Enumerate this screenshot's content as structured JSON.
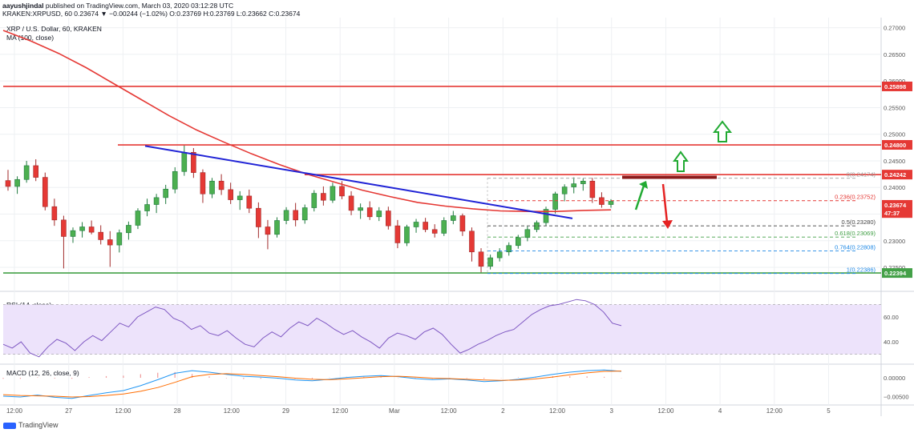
{
  "header": {
    "publisher": "aayushjindal",
    "published_line": "published on TradingView.com, March 03, 2020 03:12:28 UTC",
    "ohlc_line": "KRAKEN:XRPUSD, 60  0.23674  ▼ −0.00244 (−1.02%)  O:0.23769  H:0.23769  L:0.23662  C:0.23674"
  },
  "chart_data": [
    {
      "type": "line",
      "title": "XRP / U.S. Dollar, 60, KRAKEN",
      "indicator": "MA (100, close)",
      "x_tick_labels": [
        "12:00",
        "27",
        "12:00",
        "28",
        "12:00",
        "29",
        "12:00",
        "Mar",
        "12:00",
        "2",
        "12:00",
        "3",
        "12:00",
        "4",
        "12:00",
        "5"
      ],
      "y_tick_labels": [
        "0.27000",
        "0.26500",
        "0.26000",
        "0.25500",
        "0.25000",
        "0.24500",
        "0.24000",
        "0.23500",
        "0.23000",
        "0.22500"
      ],
      "ylim": [
        0.2214,
        0.2716
      ],
      "price_markers": [
        {
          "label": "0.25898",
          "value": 0.25898,
          "color": "#e53935"
        },
        {
          "label": "0.24800",
          "value": 0.248,
          "color": "#e53935"
        },
        {
          "label": "0.24242",
          "value": 0.24242,
          "color": "#e53935"
        },
        {
          "label": "0.23674",
          "value": 0.23674,
          "color": "#e53935"
        },
        {
          "label": "47:37",
          "value": 0.2352,
          "color": "#e53935"
        },
        {
          "label": "0.22394",
          "value": 0.22394,
          "color": "#43a047"
        }
      ],
      "fibonacci": [
        {
          "label": "0(0.24174)",
          "value": 0.24174,
          "color": "#9e9e9e"
        },
        {
          "label": "0.236(0.23752)",
          "value": 0.23752,
          "color": "#e53935"
        },
        {
          "label": "0.5(0.23280)",
          "value": 0.2328,
          "color": "#424242"
        },
        {
          "label": "0.618(0.23069)",
          "value": 0.23069,
          "color": "#43a047"
        },
        {
          "label": "0.764(0.22808)",
          "value": 0.22808,
          "color": "#1e88e5"
        },
        {
          "label": "1(0.22386)",
          "value": 0.22386,
          "color": "#1e88e5"
        }
      ],
      "ma_values": [
        0.2695,
        0.2675,
        0.2652,
        0.2625,
        0.2595,
        0.2565,
        0.2535,
        0.2508,
        0.2485,
        0.2463,
        0.2443,
        0.2425,
        0.241,
        0.2395,
        0.2383,
        0.2372,
        0.2365,
        0.236,
        0.2356,
        0.2355,
        0.2355,
        0.2357,
        0.2358
      ],
      "trend_line": {
        "color": "#2124d6",
        "from": 0.2478,
        "to": 0.2342
      },
      "candles": [
        [
          0.2413,
          0.2433,
          0.2394,
          0.2402
        ],
        [
          0.2402,
          0.2421,
          0.2388,
          0.2415
        ],
        [
          0.2415,
          0.245,
          0.2409,
          0.2441
        ],
        [
          0.2441,
          0.2453,
          0.2412,
          0.2419
        ],
        [
          0.2419,
          0.2428,
          0.2357,
          0.2364
        ],
        [
          0.2364,
          0.2379,
          0.2328,
          0.2339
        ],
        [
          0.2339,
          0.2347,
          0.2248,
          0.2308
        ],
        [
          0.2308,
          0.2325,
          0.2296,
          0.2319
        ],
        [
          0.2319,
          0.2335,
          0.2306,
          0.2326
        ],
        [
          0.2326,
          0.2338,
          0.2312,
          0.2316
        ],
        [
          0.2316,
          0.2329,
          0.2293,
          0.2302
        ],
        [
          0.2302,
          0.2318,
          0.2251,
          0.2292
        ],
        [
          0.2292,
          0.2321,
          0.2278,
          0.2315
        ],
        [
          0.2315,
          0.2336,
          0.2302,
          0.2329
        ],
        [
          0.2329,
          0.2361,
          0.2322,
          0.2356
        ],
        [
          0.2356,
          0.2379,
          0.2346,
          0.2368
        ],
        [
          0.2368,
          0.2388,
          0.2352,
          0.2381
        ],
        [
          0.2381,
          0.2405,
          0.2369,
          0.2397
        ],
        [
          0.2397,
          0.2438,
          0.2389,
          0.243
        ],
        [
          0.243,
          0.2479,
          0.2422,
          0.2466
        ],
        [
          0.2466,
          0.2474,
          0.2418,
          0.2428
        ],
        [
          0.2428,
          0.2434,
          0.2371,
          0.2388
        ],
        [
          0.2388,
          0.2418,
          0.238,
          0.2412
        ],
        [
          0.2412,
          0.2425,
          0.2386,
          0.2396
        ],
        [
          0.2396,
          0.2409,
          0.2369,
          0.2377
        ],
        [
          0.2377,
          0.2393,
          0.2358,
          0.2384
        ],
        [
          0.2384,
          0.2396,
          0.2352,
          0.2361
        ],
        [
          0.2361,
          0.2372,
          0.2305,
          0.2326
        ],
        [
          0.2326,
          0.2339,
          0.2284,
          0.2312
        ],
        [
          0.2312,
          0.2344,
          0.2306,
          0.2338
        ],
        [
          0.2338,
          0.2363,
          0.2331,
          0.2357
        ],
        [
          0.2357,
          0.2371,
          0.2327,
          0.2339
        ],
        [
          0.2339,
          0.2368,
          0.2332,
          0.2362
        ],
        [
          0.2362,
          0.2395,
          0.2355,
          0.2389
        ],
        [
          0.2389,
          0.2402,
          0.2366,
          0.2376
        ],
        [
          0.2376,
          0.2409,
          0.2371,
          0.2402
        ],
        [
          0.2402,
          0.2412,
          0.2378,
          0.2384
        ],
        [
          0.2384,
          0.2393,
          0.2348,
          0.2357
        ],
        [
          0.2357,
          0.237,
          0.2341,
          0.2362
        ],
        [
          0.2362,
          0.2374,
          0.2339,
          0.2345
        ],
        [
          0.2345,
          0.2363,
          0.2337,
          0.2356
        ],
        [
          0.2356,
          0.2364,
          0.2321,
          0.2328
        ],
        [
          0.2328,
          0.2339,
          0.2286,
          0.2296
        ],
        [
          0.2296,
          0.233,
          0.229,
          0.2326
        ],
        [
          0.2326,
          0.2341,
          0.2315,
          0.2335
        ],
        [
          0.2335,
          0.2343,
          0.2316,
          0.2321
        ],
        [
          0.2321,
          0.2331,
          0.2306,
          0.2314
        ],
        [
          0.2314,
          0.2344,
          0.2309,
          0.2338
        ],
        [
          0.2338,
          0.2356,
          0.2331,
          0.2347
        ],
        [
          0.2347,
          0.2351,
          0.2309,
          0.2318
        ],
        [
          0.2318,
          0.2325,
          0.2261,
          0.2279
        ],
        [
          0.2279,
          0.2286,
          0.2239,
          0.2252
        ],
        [
          0.2252,
          0.2274,
          0.2246,
          0.2268
        ],
        [
          0.2268,
          0.2286,
          0.2261,
          0.2279
        ],
        [
          0.2279,
          0.2297,
          0.2272,
          0.2291
        ],
        [
          0.2291,
          0.2311,
          0.2285,
          0.2306
        ],
        [
          0.2306,
          0.2327,
          0.2299,
          0.2321
        ],
        [
          0.2321,
          0.2338,
          0.2316,
          0.2334
        ],
        [
          0.2334,
          0.2364,
          0.2328,
          0.2359
        ],
        [
          0.2359,
          0.2392,
          0.2351,
          0.2388
        ],
        [
          0.2388,
          0.2406,
          0.2374,
          0.2401
        ],
        [
          0.2401,
          0.2419,
          0.2389,
          0.2407
        ],
        [
          0.2407,
          0.2417,
          0.2394,
          0.2412
        ],
        [
          0.2412,
          0.2418,
          0.2371,
          0.2381
        ],
        [
          0.2381,
          0.2391,
          0.2362,
          0.2368
        ],
        [
          0.2368,
          0.2378,
          0.2362,
          0.2374
        ]
      ]
    },
    {
      "type": "line",
      "title": "RSI (14, close)",
      "y_tick_labels": [
        "60.00",
        "40.00"
      ],
      "ylim": [
        24,
        78
      ],
      "band": [
        30,
        70
      ],
      "series": [
        {
          "color": "#7e57c2",
          "values": [
            38,
            35,
            40,
            31,
            28,
            36,
            42,
            39,
            33,
            40,
            45,
            41,
            48,
            55,
            52,
            60,
            64,
            68,
            66,
            59,
            56,
            50,
            53,
            47,
            45,
            49,
            43,
            38,
            36,
            43,
            48,
            44,
            51,
            56,
            53,
            59,
            55,
            50,
            46,
            49,
            44,
            40,
            35,
            43,
            47,
            45,
            42,
            48,
            51,
            46,
            38,
            31,
            34,
            38,
            41,
            45,
            48,
            50,
            56,
            62,
            66,
            69,
            70,
            72,
            74,
            73,
            70,
            64,
            55,
            53
          ]
        }
      ]
    },
    {
      "type": "line",
      "title": "MACD (12, 26, close, 9)",
      "y_tick_labels": [
        "0.00000",
        "−0.00500"
      ],
      "ylim": [
        -0.0066,
        0.0032
      ],
      "series": [
        {
          "color": "#2196f3",
          "values": [
            -0.0049,
            -0.0051,
            -0.0046,
            -0.0052,
            -0.0055,
            -0.0047,
            -0.004,
            -0.0034,
            -0.0021,
            -0.0005,
            0.0012,
            0.0019,
            0.0015,
            0.0009,
            0.0004,
            0.0002,
            -0.0001,
            -0.0006,
            -0.0008,
            -0.0004,
            0.0001,
            0.0004,
            0.0006,
            0.0003,
            -0.0002,
            -0.0005,
            -0.0003,
            -0.0006,
            -0.001,
            -0.0008,
            -0.0004,
            0.0002,
            0.0009,
            0.0015,
            0.0019,
            0.0021,
            0.0017
          ]
        },
        {
          "color": "#ff6d00",
          "values": [
            -0.0045,
            -0.0047,
            -0.0048,
            -0.0049,
            -0.0051,
            -0.005,
            -0.0047,
            -0.0043,
            -0.0036,
            -0.0026,
            -0.0012,
            0.0003,
            0.0009,
            0.0011,
            0.0009,
            0.0006,
            0.0003,
            -0.0001,
            -0.0004,
            -0.0005,
            -0.0003,
            0.0,
            0.0003,
            0.0004,
            0.0002,
            -0.0001,
            -0.0002,
            -0.0004,
            -0.0006,
            -0.0007,
            -0.0006,
            -0.0003,
            0.0002,
            0.0008,
            0.0013,
            0.0017,
            0.0018
          ]
        }
      ]
    }
  ]
}
